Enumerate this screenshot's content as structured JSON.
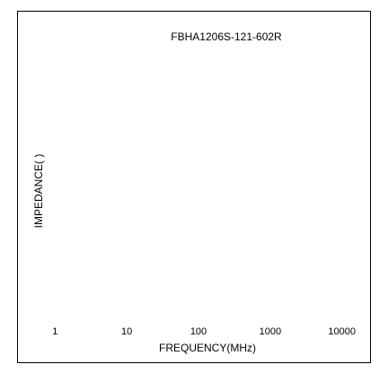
{
  "chart_data": {
    "type": "line",
    "title": "FBHA1206S-121-602R",
    "xlabel": "FREQUENCY(MHz)",
    "ylabel": "IMPEDANCE(   )",
    "x_scale": "log",
    "x_ticks": [
      "1",
      "10",
      "100",
      "1000",
      "10000"
    ],
    "x_tick_values": [
      1,
      10,
      100,
      1000,
      10000
    ],
    "xlim": [
      0.3,
      25000
    ],
    "series": [],
    "grid": false,
    "legend": "none"
  },
  "colors": {
    "frame": "#000000",
    "text": "#000000",
    "background": "#ffffff"
  }
}
